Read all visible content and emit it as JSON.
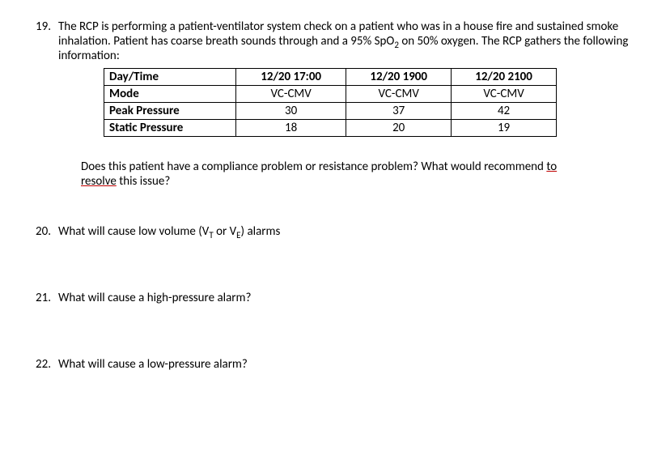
{
  "q19": {
    "num": "19.",
    "text_a": "The RCP is performing a patient-ventilator system check on a patient who was in a house fire and sustained smoke inhalation. Patient has coarse breath sounds through and a 95% SpO",
    "text_sub": "2",
    "text_b": " on 50% oxygen. The RCP gathers the following information:",
    "followup_a": "Does this patient have a compliance problem or resistance problem?  What would recommend ",
    "followup_u1": "to",
    "followup_b": " ",
    "followup_u2": "resolve",
    "followup_c": " this issue?"
  },
  "table": {
    "headers": [
      "Day/Time",
      "12/20 17:00",
      "12/20 1900",
      "12/20 2100"
    ],
    "rows": [
      {
        "label": "Mode",
        "c1": "VC-CMV",
        "c2": "VC-CMV",
        "c3": "VC-CMV"
      },
      {
        "label": "Peak Pressure",
        "c1": "30",
        "c2": "37",
        "c3": "42"
      },
      {
        "label": "Static Pressure",
        "c1": "18",
        "c2": "20",
        "c3": "19"
      }
    ]
  },
  "q20": {
    "num": "20.",
    "text_a": "What will cause low volume (V",
    "sub1": "T",
    "text_b": " or V",
    "sub2": "E",
    "text_c": ") alarms"
  },
  "q21": {
    "num": "21.",
    "text": "What will cause a high-pressure alarm?"
  },
  "q22": {
    "num": "22.",
    "text": "What will cause a low-pressure alarm?"
  }
}
